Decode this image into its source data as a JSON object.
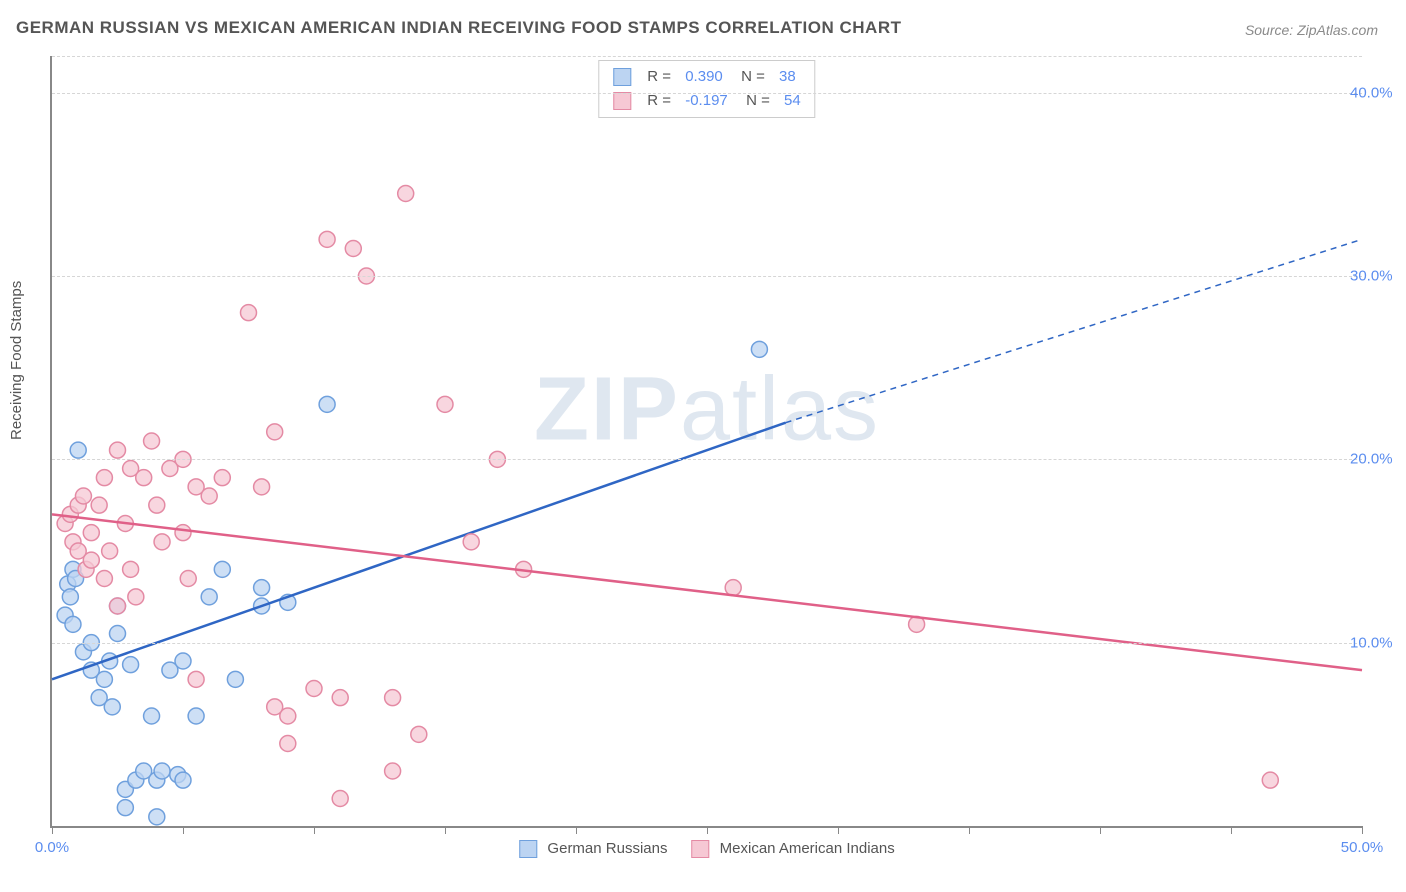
{
  "title": "GERMAN RUSSIAN VS MEXICAN AMERICAN INDIAN RECEIVING FOOD STAMPS CORRELATION CHART",
  "source": "Source: ZipAtlas.com",
  "ylabel": "Receiving Food Stamps",
  "watermark_bold": "ZIP",
  "watermark_light": "atlas",
  "chart": {
    "type": "scatter-with-regression",
    "background_color": "#ffffff",
    "grid_color": "#d6d6d6",
    "axis_color": "#888888",
    "label_color": "#5b8def",
    "text_color": "#555555",
    "xlim": [
      0,
      50
    ],
    "ylim": [
      0,
      42
    ],
    "xticks": [
      0,
      5,
      10,
      15,
      20,
      25,
      30,
      35,
      40,
      45,
      50
    ],
    "xtick_labels": {
      "0": "0.0%",
      "50": "50.0%"
    },
    "yticks": [
      10,
      20,
      30,
      40
    ],
    "ytick_labels": {
      "10": "10.0%",
      "20": "20.0%",
      "30": "30.0%",
      "40": "40.0%"
    },
    "marker_radius": 8,
    "marker_stroke_width": 1.5,
    "line_width": 2.5,
    "series": [
      {
        "name": "German Russians",
        "color_fill": "#bcd4f2",
        "color_stroke": "#6fa0dd",
        "line_color": "#2f66c4",
        "R": "0.390",
        "N": "38",
        "regression": {
          "x1": 0,
          "y1": 8.0,
          "x2": 28,
          "y2": 22.0,
          "extrap_x2": 50,
          "extrap_y2": 32.0
        },
        "points": [
          [
            0.5,
            11.5
          ],
          [
            0.6,
            13.2
          ],
          [
            0.7,
            12.5
          ],
          [
            0.8,
            14.0
          ],
          [
            0.8,
            11.0
          ],
          [
            0.9,
            13.5
          ],
          [
            1.0,
            20.5
          ],
          [
            1.2,
            9.5
          ],
          [
            1.5,
            8.5
          ],
          [
            1.5,
            10.0
          ],
          [
            1.8,
            7.0
          ],
          [
            2.0,
            8.0
          ],
          [
            2.2,
            9.0
          ],
          [
            2.3,
            6.5
          ],
          [
            2.5,
            12.0
          ],
          [
            2.5,
            10.5
          ],
          [
            2.8,
            2.0
          ],
          [
            2.8,
            1.0
          ],
          [
            3.0,
            8.8
          ],
          [
            3.2,
            2.5
          ],
          [
            3.5,
            3.0
          ],
          [
            3.8,
            6.0
          ],
          [
            4.0,
            2.5
          ],
          [
            4.0,
            0.5
          ],
          [
            4.2,
            3.0
          ],
          [
            4.5,
            8.5
          ],
          [
            4.8,
            2.8
          ],
          [
            5.0,
            9.0
          ],
          [
            5.0,
            2.5
          ],
          [
            5.5,
            6.0
          ],
          [
            6.0,
            12.5
          ],
          [
            6.5,
            14.0
          ],
          [
            7.0,
            8.0
          ],
          [
            8.0,
            13.0
          ],
          [
            8.0,
            12.0
          ],
          [
            9.0,
            12.2
          ],
          [
            10.5,
            23.0
          ],
          [
            27.0,
            26.0
          ]
        ]
      },
      {
        "name": "Mexican American Indians",
        "color_fill": "#f6c8d4",
        "color_stroke": "#e48aa4",
        "line_color": "#e06088",
        "R": "-0.197",
        "N": "54",
        "regression": {
          "x1": 0,
          "y1": 17.0,
          "x2": 50,
          "y2": 8.5,
          "extrap_x2": 50,
          "extrap_y2": 8.5
        },
        "points": [
          [
            0.5,
            16.5
          ],
          [
            0.7,
            17.0
          ],
          [
            0.8,
            15.5
          ],
          [
            1.0,
            15.0
          ],
          [
            1.0,
            17.5
          ],
          [
            1.2,
            18.0
          ],
          [
            1.3,
            14.0
          ],
          [
            1.5,
            16.0
          ],
          [
            1.5,
            14.5
          ],
          [
            1.8,
            17.5
          ],
          [
            2.0,
            13.5
          ],
          [
            2.0,
            19.0
          ],
          [
            2.2,
            15.0
          ],
          [
            2.5,
            20.5
          ],
          [
            2.5,
            12.0
          ],
          [
            2.8,
            16.5
          ],
          [
            3.0,
            19.5
          ],
          [
            3.0,
            14.0
          ],
          [
            3.5,
            19.0
          ],
          [
            3.8,
            21.0
          ],
          [
            4.0,
            17.5
          ],
          [
            4.2,
            15.5
          ],
          [
            4.5,
            19.5
          ],
          [
            5.0,
            16.0
          ],
          [
            5.0,
            20.0
          ],
          [
            5.2,
            13.5
          ],
          [
            5.5,
            18.5
          ],
          [
            6.0,
            18.0
          ],
          [
            6.5,
            19.0
          ],
          [
            7.5,
            28.0
          ],
          [
            8.0,
            18.5
          ],
          [
            8.5,
            21.5
          ],
          [
            9.0,
            4.5
          ],
          [
            9.0,
            6.0
          ],
          [
            10.0,
            7.5
          ],
          [
            10.5,
            32.0
          ],
          [
            11.0,
            7.0
          ],
          [
            11.0,
            1.5
          ],
          [
            11.5,
            31.5
          ],
          [
            12.0,
            30.0
          ],
          [
            13.0,
            7.0
          ],
          [
            13.0,
            3.0
          ],
          [
            13.5,
            34.5
          ],
          [
            14.0,
            5.0
          ],
          [
            15.0,
            23.0
          ],
          [
            16.0,
            15.5
          ],
          [
            17.0,
            20.0
          ],
          [
            18.0,
            14.0
          ],
          [
            26.0,
            13.0
          ],
          [
            33.0,
            11.0
          ],
          [
            46.5,
            2.5
          ],
          [
            5.5,
            8.0
          ],
          [
            8.5,
            6.5
          ],
          [
            3.2,
            12.5
          ]
        ]
      }
    ],
    "bottom_legend": [
      {
        "label": "German Russians",
        "fill": "#bcd4f2",
        "stroke": "#6fa0dd"
      },
      {
        "label": "Mexican American Indians",
        "fill": "#f6c8d4",
        "stroke": "#e48aa4"
      }
    ]
  }
}
